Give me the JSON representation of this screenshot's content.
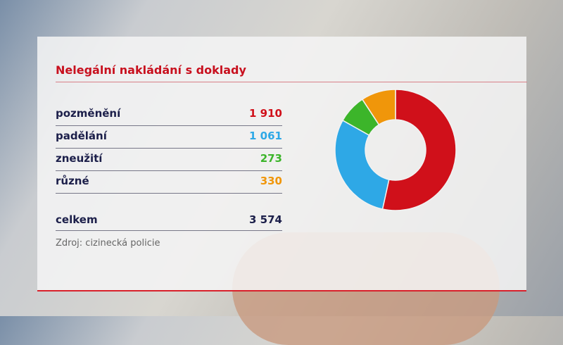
{
  "chart_data": {
    "type": "pie",
    "donut": true,
    "title": "Nelegální nakládání s doklady",
    "categories": [
      "pozměnění",
      "padělání",
      "zneužití",
      "různé"
    ],
    "values": [
      1910,
      1061,
      273,
      330
    ],
    "value_labels": [
      "1 910",
      "1 061",
      "273",
      "330"
    ],
    "colors": [
      "#d0101a",
      "#2ea8e6",
      "#3cb52a",
      "#f0960a"
    ],
    "total_label": "celkem",
    "total_value": "3 574",
    "source": "Zdroj: cizinecká policie"
  }
}
